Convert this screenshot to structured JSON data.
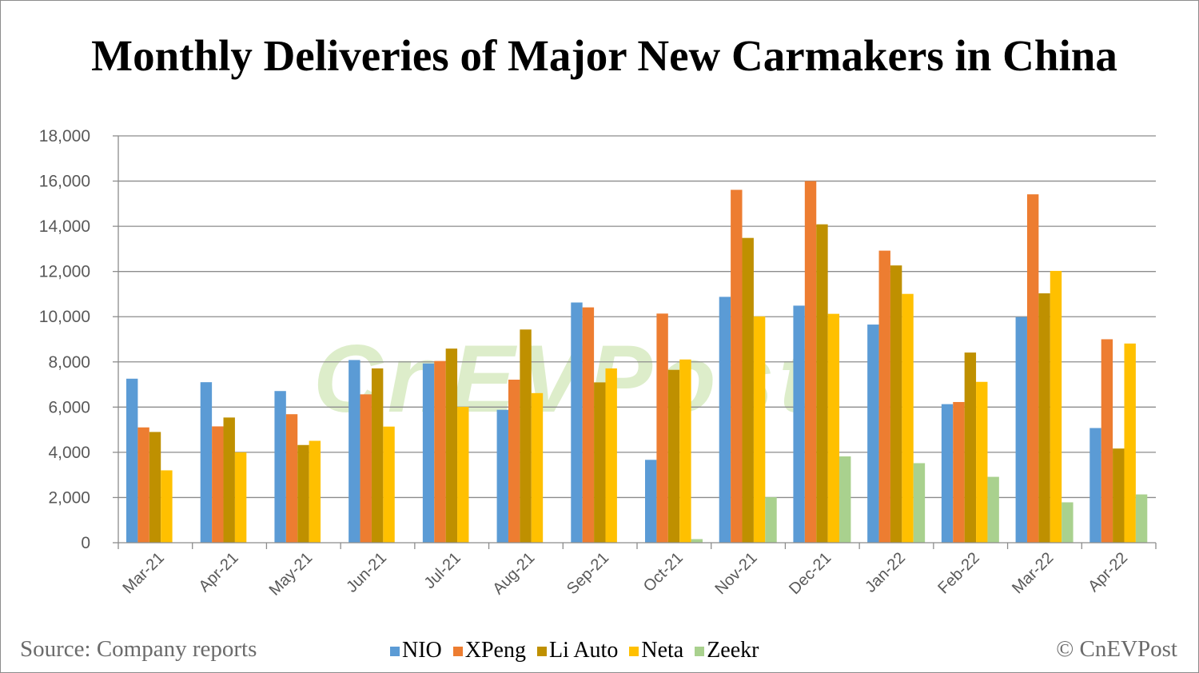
{
  "footer": {
    "source": "Source: Company reports",
    "copyright": "© CnEVPost"
  },
  "watermark": "CnEVPost",
  "chart_data": {
    "type": "bar",
    "title": "Monthly Deliveries of Major New Carmakers in China",
    "xlabel": "",
    "ylabel": "",
    "ylim": [
      0,
      18000
    ],
    "yticks": [
      "0",
      "2,000",
      "4,000",
      "6,000",
      "8,000",
      "10,000",
      "12,000",
      "14,000",
      "16,000",
      "18,000"
    ],
    "ytick_values": [
      0,
      2000,
      4000,
      6000,
      8000,
      10000,
      12000,
      14000,
      16000,
      18000
    ],
    "grid": true,
    "legend_position": "bottom",
    "categories": [
      "Mar-21",
      "Apr-21",
      "May-21",
      "Jun-21",
      "Jul-21",
      "Aug-21",
      "Sep-21",
      "Oct-21",
      "Nov-21",
      "Dec-21",
      "Jan-22",
      "Feb-22",
      "Mar-22",
      "Apr-22"
    ],
    "series": [
      {
        "name": "NIO",
        "color": "#5b9bd5",
        "values": [
          7257,
          7102,
          6711,
          8083,
          7931,
          5880,
          10628,
          3667,
          10878,
          10489,
          9652,
          6131,
          9985,
          5074
        ]
      },
      {
        "name": "XPeng",
        "color": "#ed7d31",
        "values": [
          5102,
          5147,
          5686,
          6565,
          8040,
          7214,
          10412,
          10138,
          15613,
          16000,
          12922,
          6225,
          15414,
          9002
        ]
      },
      {
        "name": "Li Auto",
        "color": "#bf9000",
        "values": [
          4900,
          5539,
          4323,
          7713,
          8589,
          9433,
          7094,
          7649,
          13485,
          14087,
          12268,
          8414,
          11034,
          4167
        ]
      },
      {
        "name": "Neta",
        "color": "#ffc000",
        "values": [
          3202,
          4000,
          4508,
          5138,
          6011,
          6620,
          7712,
          8107,
          10013,
          10127,
          11009,
          7117,
          12026,
          8813
        ]
      },
      {
        "name": "Zeekr",
        "color": "#a9d18e",
        "values": [
          0,
          0,
          0,
          0,
          0,
          0,
          0,
          159,
          2012,
          3819,
          3520,
          2915,
          1787,
          2137
        ]
      }
    ]
  }
}
